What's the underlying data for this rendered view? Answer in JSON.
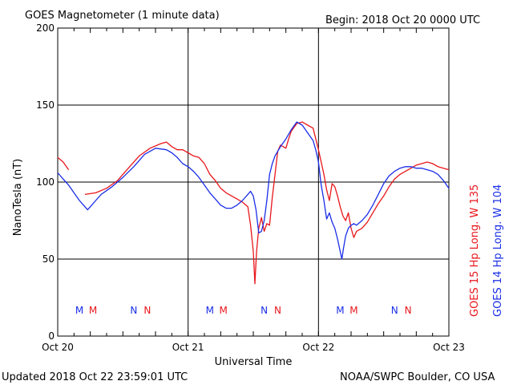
{
  "header": {
    "title": "GOES Magnetometer (1 minute data)",
    "begin": "Begin:  2018 Oct 20 0000 UTC"
  },
  "footer": {
    "updated": "Updated 2018 Oct 22 23:59:01 UTC",
    "source": "NOAA/SWPC Boulder, CO USA"
  },
  "colors": {
    "goes15": "#e8161b",
    "goes14": "#1a2ee6"
  },
  "chart_data": {
    "type": "line",
    "title": "GOES Magnetometer (1 minute data)",
    "xlabel": "Universal Time",
    "ylabel": "NanoTesla (nT)",
    "ylim": [
      0,
      200
    ],
    "xlim": [
      0,
      72
    ],
    "x_unit": "hours since 2018 Oct 20 0000 UTC",
    "grid": true,
    "y_ticks": [
      0,
      50,
      100,
      150,
      200
    ],
    "x_ticks": [
      {
        "x": 0,
        "label": "Oct 20"
      },
      {
        "x": 24,
        "label": "Oct 21"
      },
      {
        "x": 48,
        "label": "Oct 22"
      },
      {
        "x": 72,
        "label": "Oct 23"
      }
    ],
    "series": [
      {
        "name": "GOES 15 Hp  Long. W 135",
        "color": "#e8161b",
        "points": [
          [
            0,
            116
          ],
          [
            1,
            113
          ],
          [
            2,
            108
          ],
          [
            null,
            null
          ],
          [
            5,
            92
          ],
          [
            7,
            93
          ],
          [
            9,
            96
          ],
          [
            11,
            101
          ],
          [
            13,
            109
          ],
          [
            15,
            117
          ],
          [
            17,
            122
          ],
          [
            19,
            125
          ],
          [
            20,
            126
          ],
          [
            21,
            123
          ],
          [
            22,
            121
          ],
          [
            23,
            121
          ],
          [
            24,
            119
          ],
          [
            25,
            117
          ],
          [
            26,
            116
          ],
          [
            27,
            112
          ],
          [
            28,
            105
          ],
          [
            29,
            101
          ],
          [
            30,
            96
          ],
          [
            31,
            93
          ],
          [
            32,
            91
          ],
          [
            33,
            89
          ],
          [
            34,
            87
          ],
          [
            35,
            84
          ],
          [
            35.5,
            72
          ],
          [
            36,
            55
          ],
          [
            36.3,
            34
          ],
          [
            36.6,
            55
          ],
          [
            37,
            70
          ],
          [
            37.5,
            77
          ],
          [
            38,
            68
          ],
          [
            38.5,
            73
          ],
          [
            39,
            72
          ],
          [
            39.5,
            90
          ],
          [
            40,
            105
          ],
          [
            40.5,
            120
          ],
          [
            41,
            124
          ],
          [
            42,
            122
          ],
          [
            42.5,
            128
          ],
          [
            43,
            133
          ],
          [
            44,
            138
          ],
          [
            45,
            139
          ],
          [
            46,
            137
          ],
          [
            47,
            135
          ],
          [
            48,
            121
          ],
          [
            48.5,
            113
          ],
          [
            49,
            105
          ],
          [
            49.5,
            95
          ],
          [
            50,
            88
          ],
          [
            50.5,
            99
          ],
          [
            51,
            97
          ],
          [
            51.5,
            91
          ],
          [
            52,
            84
          ],
          [
            52.5,
            78
          ],
          [
            53,
            75
          ],
          [
            53.5,
            80
          ],
          [
            54,
            70
          ],
          [
            54.5,
            64
          ],
          [
            55,
            68
          ],
          [
            56,
            70
          ],
          [
            57,
            74
          ],
          [
            58,
            80
          ],
          [
            59,
            86
          ],
          [
            60,
            91
          ],
          [
            61,
            97
          ],
          [
            62,
            102
          ],
          [
            63,
            105
          ],
          [
            64,
            107
          ],
          [
            65,
            109
          ],
          [
            66,
            111
          ],
          [
            67,
            112
          ],
          [
            68,
            113
          ],
          [
            69,
            112
          ],
          [
            70,
            110
          ],
          [
            71,
            109
          ],
          [
            72,
            108
          ]
        ]
      },
      {
        "name": "GOES 14 Hp  Long. W 104",
        "color": "#1a2ee6",
        "points": [
          [
            0,
            106
          ],
          [
            1,
            102
          ],
          [
            2,
            98
          ],
          [
            3,
            93
          ],
          [
            4,
            88
          ],
          [
            5,
            84
          ],
          [
            5.5,
            82
          ],
          [
            6,
            84
          ],
          [
            7,
            88
          ],
          [
            8,
            92
          ],
          [
            10,
            97
          ],
          [
            12,
            103
          ],
          [
            14,
            110
          ],
          [
            16,
            118
          ],
          [
            18,
            122
          ],
          [
            20,
            121
          ],
          [
            21,
            119
          ],
          [
            22,
            116
          ],
          [
            23,
            112
          ],
          [
            24,
            110
          ],
          [
            25,
            107
          ],
          [
            26,
            103
          ],
          [
            27,
            98
          ],
          [
            28,
            93
          ],
          [
            29,
            89
          ],
          [
            30,
            85
          ],
          [
            31,
            83
          ],
          [
            32,
            83
          ],
          [
            33,
            85
          ],
          [
            34,
            88
          ],
          [
            35,
            92
          ],
          [
            35.5,
            94
          ],
          [
            36,
            91
          ],
          [
            36.5,
            82
          ],
          [
            37,
            67
          ],
          [
            37.5,
            68
          ],
          [
            38,
            75
          ],
          [
            38.5,
            88
          ],
          [
            39,
            105
          ],
          [
            39.5,
            112
          ],
          [
            40,
            117
          ],
          [
            41,
            123
          ],
          [
            42,
            128
          ],
          [
            43,
            134
          ],
          [
            44,
            139
          ],
          [
            45,
            137
          ],
          [
            46,
            132
          ],
          [
            47,
            127
          ],
          [
            47.5,
            121
          ],
          [
            48,
            113
          ],
          [
            48.5,
            98
          ],
          [
            49,
            88
          ],
          [
            49.5,
            76
          ],
          [
            50,
            80
          ],
          [
            50.5,
            74
          ],
          [
            51,
            70
          ],
          [
            51.5,
            63
          ],
          [
            52,
            55
          ],
          [
            52.3,
            50
          ],
          [
            52.6,
            57
          ],
          [
            53,
            65
          ],
          [
            53.5,
            70
          ],
          [
            54,
            72
          ],
          [
            54.5,
            73
          ],
          [
            55,
            72
          ],
          [
            56,
            75
          ],
          [
            57,
            79
          ],
          [
            58,
            85
          ],
          [
            59,
            92
          ],
          [
            60,
            99
          ],
          [
            61,
            104
          ],
          [
            62,
            107
          ],
          [
            63,
            109
          ],
          [
            64,
            110
          ],
          [
            65,
            110
          ],
          [
            66,
            109
          ],
          [
            67,
            109
          ],
          [
            68,
            108
          ],
          [
            69,
            107
          ],
          [
            70,
            105
          ],
          [
            71,
            101
          ],
          [
            72,
            96
          ]
        ]
      }
    ],
    "annotations": [
      {
        "x": 4,
        "text": "M",
        "color": "#1a2ee6"
      },
      {
        "x": 6.5,
        "text": "M",
        "color": "#e8161b"
      },
      {
        "x": 14,
        "text": "N",
        "color": "#1a2ee6"
      },
      {
        "x": 16.5,
        "text": "N",
        "color": "#e8161b"
      },
      {
        "x": 28,
        "text": "M",
        "color": "#1a2ee6"
      },
      {
        "x": 30.5,
        "text": "M",
        "color": "#e8161b"
      },
      {
        "x": 38,
        "text": "N",
        "color": "#1a2ee6"
      },
      {
        "x": 40.5,
        "text": "N",
        "color": "#e8161b"
      },
      {
        "x": 52,
        "text": "M",
        "color": "#1a2ee6"
      },
      {
        "x": 54.5,
        "text": "M",
        "color": "#e8161b"
      },
      {
        "x": 62,
        "text": "N",
        "color": "#1a2ee6"
      },
      {
        "x": 64.5,
        "text": "N",
        "color": "#e8161b"
      }
    ]
  }
}
